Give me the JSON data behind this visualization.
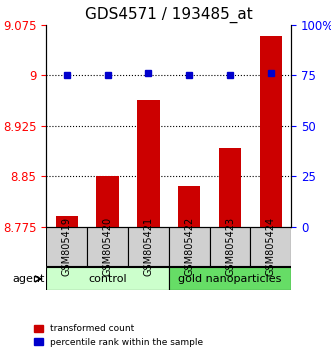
{
  "title": "GDS4571 / 193485_at",
  "samples": [
    "GSM805419",
    "GSM805420",
    "GSM805421",
    "GSM805422",
    "GSM805423",
    "GSM805424"
  ],
  "red_values": [
    8.792,
    8.851,
    8.963,
    8.836,
    8.892,
    9.059
  ],
  "blue_values": [
    75,
    75,
    76,
    75,
    75,
    76
  ],
  "ylim_left": [
    8.775,
    9.075
  ],
  "ylim_right": [
    0,
    100
  ],
  "yticks_left": [
    8.775,
    8.85,
    8.925,
    9.0,
    9.075
  ],
  "ytick_labels_left": [
    "8.775",
    "8.85",
    "8.925",
    "9",
    "9.075"
  ],
  "yticks_right": [
    0,
    25,
    50,
    75,
    100
  ],
  "ytick_labels_right": [
    "0",
    "25",
    "50",
    "75",
    "100%"
  ],
  "hlines": [
    9.0,
    8.925,
    8.85
  ],
  "groups": [
    {
      "label": "control",
      "indices": [
        0,
        1,
        2
      ],
      "color": "#ccffcc"
    },
    {
      "label": "gold nanoparticles",
      "indices": [
        3,
        4,
        5
      ],
      "color": "#66dd66"
    }
  ],
  "agent_label": "agent",
  "bar_color": "#cc0000",
  "dot_color": "#0000cc",
  "bar_bottom": 8.775,
  "legend_items": [
    {
      "color": "#cc0000",
      "label": "transformed count"
    },
    {
      "color": "#0000cc",
      "label": "percentile rank within the sample"
    }
  ],
  "title_fontsize": 11,
  "tick_fontsize": 8.5,
  "sample_fontsize": 7,
  "bar_width": 0.55
}
